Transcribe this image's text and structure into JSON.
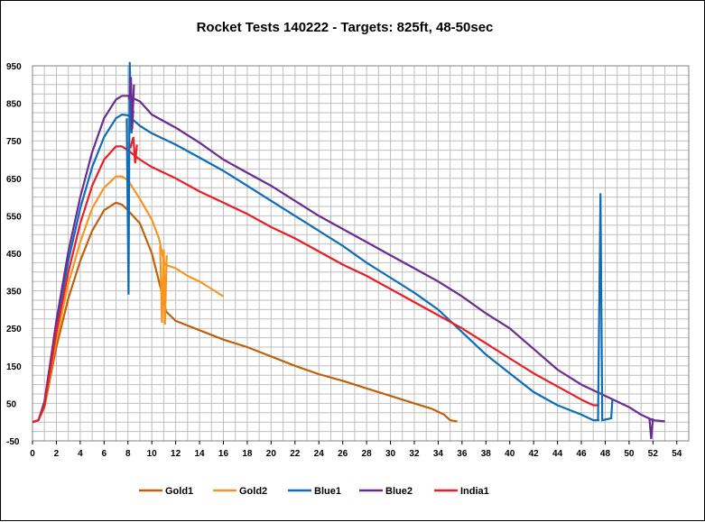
{
  "chart_data": {
    "type": "line",
    "title": "Rocket Tests 140222 - Targets: 825ft, 48-50sec",
    "xlabel": "",
    "ylabel": "",
    "xlim": [
      0,
      55
    ],
    "ylim": [
      -50,
      950
    ],
    "x_ticks": [
      0,
      2,
      4,
      6,
      8,
      10,
      12,
      14,
      16,
      18,
      20,
      22,
      24,
      26,
      28,
      30,
      32,
      34,
      36,
      38,
      40,
      42,
      44,
      46,
      48,
      50,
      52,
      54
    ],
    "y_ticks": [
      -50,
      50,
      150,
      250,
      350,
      450,
      550,
      650,
      750,
      850,
      950
    ],
    "grid": true,
    "legend_position": "bottom",
    "series": [
      {
        "name": "Gold1",
        "color": "#C0600A",
        "points": [
          [
            0,
            0
          ],
          [
            0.5,
            5
          ],
          [
            1,
            40
          ],
          [
            1.5,
            120
          ],
          [
            2,
            200
          ],
          [
            3,
            330
          ],
          [
            4,
            430
          ],
          [
            5,
            510
          ],
          [
            6,
            565
          ],
          [
            7,
            585
          ],
          [
            7.5,
            580
          ],
          [
            8,
            565
          ],
          [
            9,
            530
          ],
          [
            10,
            450
          ],
          [
            10.8,
            350
          ],
          [
            11.2,
            295
          ],
          [
            12,
            270
          ],
          [
            14,
            245
          ],
          [
            16,
            220
          ],
          [
            18,
            200
          ],
          [
            20,
            175
          ],
          [
            22,
            150
          ],
          [
            24,
            128
          ],
          [
            26,
            110
          ],
          [
            28,
            90
          ],
          [
            30,
            70
          ],
          [
            32,
            50
          ],
          [
            33.5,
            35
          ],
          [
            34.5,
            20
          ],
          [
            35,
            5
          ],
          [
            35.6,
            2
          ]
        ]
      },
      {
        "name": "Gold2",
        "color": "#F7961E",
        "points": [
          [
            0,
            0
          ],
          [
            0.5,
            5
          ],
          [
            1,
            45
          ],
          [
            1.5,
            130
          ],
          [
            2,
            220
          ],
          [
            3,
            370
          ],
          [
            4,
            480
          ],
          [
            5,
            570
          ],
          [
            6,
            625
          ],
          [
            7,
            655
          ],
          [
            7.5,
            655
          ],
          [
            8,
            645
          ],
          [
            9,
            595
          ],
          [
            10,
            540
          ],
          [
            10.6,
            490
          ],
          [
            10.9,
            445
          ],
          [
            11.1,
            420
          ],
          [
            12,
            410
          ],
          [
            13,
            390
          ],
          [
            14,
            375
          ],
          [
            15,
            355
          ],
          [
            16,
            335
          ]
        ]
      },
      {
        "name": "Blue1",
        "color": "#0F6CB6",
        "points": [
          [
            0,
            0
          ],
          [
            0.5,
            5
          ],
          [
            1,
            50
          ],
          [
            1.5,
            150
          ],
          [
            2,
            260
          ],
          [
            3,
            430
          ],
          [
            4,
            570
          ],
          [
            5,
            680
          ],
          [
            6,
            760
          ],
          [
            7,
            810
          ],
          [
            7.5,
            820
          ],
          [
            8,
            818
          ],
          [
            9,
            790
          ],
          [
            10,
            770
          ],
          [
            12,
            740
          ],
          [
            14,
            705
          ],
          [
            16,
            670
          ],
          [
            18,
            630
          ],
          [
            20,
            590
          ],
          [
            22,
            550
          ],
          [
            24,
            510
          ],
          [
            26,
            470
          ],
          [
            28,
            425
          ],
          [
            30,
            385
          ],
          [
            32,
            345
          ],
          [
            34,
            300
          ],
          [
            36,
            240
          ],
          [
            38,
            180
          ],
          [
            40,
            130
          ],
          [
            42,
            80
          ],
          [
            44,
            45
          ],
          [
            46,
            20
          ],
          [
            47,
            5
          ],
          [
            47.5,
            5
          ]
        ]
      },
      {
        "name": "Blue2",
        "color": "#6A2C91",
        "points": [
          [
            0,
            0
          ],
          [
            0.5,
            5
          ],
          [
            1,
            55
          ],
          [
            1.5,
            160
          ],
          [
            2,
            270
          ],
          [
            3,
            455
          ],
          [
            4,
            600
          ],
          [
            5,
            720
          ],
          [
            6,
            810
          ],
          [
            7,
            860
          ],
          [
            7.5,
            870
          ],
          [
            8,
            870
          ],
          [
            9,
            855
          ],
          [
            10,
            820
          ],
          [
            12,
            785
          ],
          [
            14,
            745
          ],
          [
            16,
            700
          ],
          [
            18,
            665
          ],
          [
            20,
            630
          ],
          [
            22,
            590
          ],
          [
            24,
            550
          ],
          [
            26,
            515
          ],
          [
            28,
            480
          ],
          [
            30,
            445
          ],
          [
            32,
            410
          ],
          [
            34,
            375
          ],
          [
            36,
            335
          ],
          [
            38,
            290
          ],
          [
            40,
            250
          ],
          [
            42,
            195
          ],
          [
            44,
            140
          ],
          [
            46,
            100
          ],
          [
            48,
            70
          ],
          [
            50,
            40
          ],
          [
            51,
            20
          ],
          [
            52,
            5
          ],
          [
            53,
            2
          ]
        ]
      },
      {
        "name": "India1",
        "color": "#EA1E25",
        "points": [
          [
            0,
            0
          ],
          [
            0.5,
            5
          ],
          [
            1,
            45
          ],
          [
            1.5,
            140
          ],
          [
            2,
            240
          ],
          [
            3,
            400
          ],
          [
            4,
            530
          ],
          [
            5,
            630
          ],
          [
            6,
            700
          ],
          [
            7,
            735
          ],
          [
            7.5,
            735
          ],
          [
            8,
            725
          ],
          [
            9,
            700
          ],
          [
            10,
            680
          ],
          [
            12,
            650
          ],
          [
            14,
            615
          ],
          [
            16,
            585
          ],
          [
            18,
            555
          ],
          [
            20,
            520
          ],
          [
            22,
            490
          ],
          [
            24,
            455
          ],
          [
            26,
            420
          ],
          [
            28,
            390
          ],
          [
            30,
            355
          ],
          [
            32,
            320
          ],
          [
            34,
            285
          ],
          [
            36,
            250
          ],
          [
            38,
            210
          ],
          [
            40,
            170
          ],
          [
            42,
            130
          ],
          [
            44,
            95
          ],
          [
            46,
            60
          ],
          [
            47,
            45
          ],
          [
            47.5,
            45
          ]
        ]
      }
    ],
    "spikes": [
      {
        "series": "Blue1",
        "points": [
          [
            7.9,
            810
          ],
          [
            8.05,
            340
          ],
          [
            8.15,
            960
          ],
          [
            8.3,
            770
          ],
          [
            8.45,
            830
          ]
        ]
      },
      {
        "series": "Blue2",
        "points": [
          [
            8.1,
            860
          ],
          [
            8.25,
            920
          ],
          [
            8.35,
            780
          ],
          [
            8.5,
            900
          ]
        ]
      },
      {
        "series": "India1",
        "points": [
          [
            8.2,
            730
          ],
          [
            8.45,
            760
          ],
          [
            8.6,
            690
          ],
          [
            8.75,
            740
          ]
        ]
      },
      {
        "series": "Gold2",
        "points": [
          [
            10.7,
            470
          ],
          [
            10.85,
            265
          ],
          [
            11,
            460
          ],
          [
            11.1,
            260
          ],
          [
            11.25,
            445
          ]
        ]
      },
      {
        "series": "Blue1",
        "points": [
          [
            47.4,
            5
          ],
          [
            47.6,
            610
          ],
          [
            47.75,
            5
          ],
          [
            48.5,
            10
          ],
          [
            48.6,
            60
          ]
        ]
      },
      {
        "series": "Blue2",
        "points": [
          [
            51.7,
            10
          ],
          [
            51.85,
            -45
          ],
          [
            52,
            10
          ]
        ]
      }
    ]
  }
}
